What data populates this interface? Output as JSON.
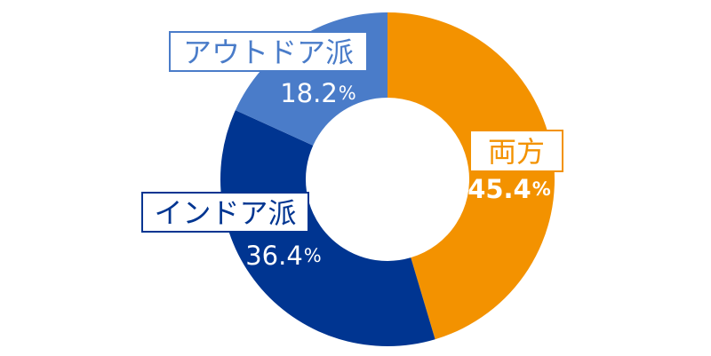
{
  "chart_data": {
    "type": "pie",
    "style": "donut",
    "title": "",
    "slices": [
      {
        "category": "両方",
        "value": 45.4,
        "percent_label": "45.4",
        "percent_suffix": "%",
        "color": "#f39200",
        "label_color": "#f39200",
        "value_text_color": "#ffffff",
        "value_weight": "bold"
      },
      {
        "category": "インドア派",
        "value": 36.4,
        "percent_label": "36.4",
        "percent_suffix": "%",
        "color": "#003591",
        "label_color": "#003591",
        "value_text_color": "#ffffff",
        "value_weight": "normal"
      },
      {
        "category": "アウトドア派",
        "value": 18.2,
        "percent_label": "18.2",
        "percent_suffix": "%",
        "color": "#4a7cc9",
        "label_color": "#4a7cc9",
        "value_text_color": "#ffffff",
        "value_weight": "normal"
      }
    ]
  }
}
